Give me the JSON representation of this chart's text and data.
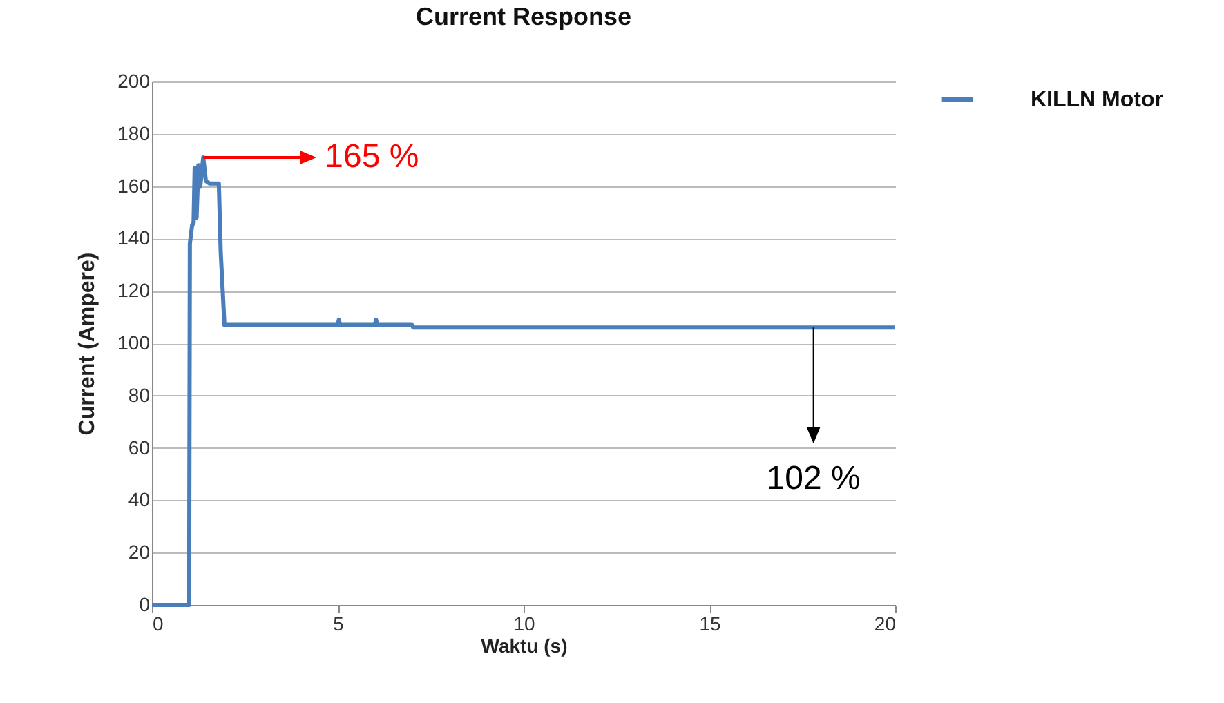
{
  "chart_data": {
    "type": "line",
    "title": "Current Response",
    "xlabel": "Waktu (s)",
    "ylabel": "Current (Ampere)",
    "xlim": [
      0,
      20
    ],
    "xticks": [
      0,
      5,
      10,
      15,
      20
    ],
    "ylim": [
      0,
      200
    ],
    "yticks": [
      0,
      20,
      40,
      60,
      80,
      100,
      120,
      140,
      160,
      180,
      200
    ],
    "grid": "y",
    "legend": "right",
    "marker": "none",
    "line_style": "solid",
    "annotations": [
      {
        "text": "165 %",
        "x": 1.38,
        "y": 171
      },
      {
        "text": "102 %",
        "x": 17.8,
        "y": 106
      }
    ],
    "series": [
      {
        "name": "KILLN Motor",
        "color": "#4a7ebb",
        "x": [
          0,
          1.0,
          1.02,
          1.08,
          1.12,
          1.15,
          1.2,
          1.25,
          1.3,
          1.38,
          1.45,
          1.55,
          1.8,
          1.85,
          1.95,
          5,
          5.03,
          5.06,
          6,
          6.03,
          6.06,
          7,
          7.03,
          20
        ],
        "values": [
          0,
          0,
          138,
          145,
          146,
          167,
          148,
          168,
          160,
          171,
          162,
          161,
          161,
          135,
          107,
          107,
          109,
          107,
          107,
          109,
          107,
          107,
          106,
          106
        ]
      }
    ]
  }
}
